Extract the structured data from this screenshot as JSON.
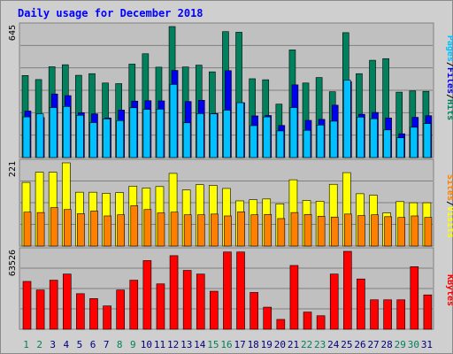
{
  "title": "Daily usage for December 2018",
  "colors": {
    "hits": "#00805c",
    "files": "#0000f0",
    "pages": "#00c0ff",
    "visits": "#ffff00",
    "sites": "#ff8000",
    "kbytes": "#ff0000",
    "day_normal": "#000080",
    "day_weekend": "#00805c"
  },
  "chart_data": [
    {
      "type": "bar",
      "name": "hits-files-pages",
      "max_label": "645",
      "categories": [
        "1",
        "2",
        "3",
        "4",
        "5",
        "6",
        "7",
        "8",
        "9",
        "10",
        "11",
        "12",
        "13",
        "14",
        "15",
        "16",
        "17",
        "18",
        "19",
        "20",
        "21",
        "22",
        "23",
        "24",
        "25",
        "26",
        "27",
        "28",
        "29",
        "30",
        "31"
      ],
      "weekend": [
        1,
        2,
        8,
        9,
        15,
        16,
        22,
        23,
        29,
        30
      ],
      "series": [
        {
          "name": "Hits",
          "values": [
            404,
            384,
            447,
            457,
            405,
            413,
            367,
            364,
            460,
            511,
            445,
            645,
            446,
            455,
            422,
            620,
            617,
            388,
            383,
            263,
            530,
            367,
            394,
            324,
            615,
            413,
            479,
            487,
            322,
            328,
            326
          ]
        },
        {
          "name": "Files",
          "values": [
            229,
            197,
            313,
            305,
            221,
            215,
            195,
            234,
            278,
            280,
            279,
            429,
            276,
            282,
            217,
            428,
            270,
            205,
            207,
            158,
            358,
            183,
            188,
            258,
            373,
            213,
            222,
            195,
            117,
            198,
            206
          ]
        },
        {
          "name": "Pages",
          "values": [
            200,
            215,
            246,
            251,
            208,
            172,
            190,
            182,
            245,
            237,
            238,
            360,
            171,
            216,
            215,
            233,
            270,
            157,
            200,
            131,
            246,
            134,
            160,
            179,
            381,
            199,
            191,
            136,
            97,
            149,
            167
          ]
        }
      ]
    },
    {
      "type": "bar",
      "name": "visits-sites",
      "max_label": "221",
      "categories": [
        "1",
        "2",
        "3",
        "4",
        "5",
        "6",
        "7",
        "8",
        "9",
        "10",
        "11",
        "12",
        "13",
        "14",
        "15",
        "16",
        "17",
        "18",
        "19",
        "20",
        "21",
        "22",
        "23",
        "24",
        "25",
        "26",
        "27",
        "28",
        "29",
        "30",
        "31"
      ],
      "series": [
        {
          "name": "Visits",
          "values": [
            169,
            196,
            196,
            221,
            143,
            143,
            140,
            142,
            159,
            154,
            158,
            193,
            149,
            163,
            161,
            153,
            120,
            123,
            125,
            112,
            176,
            121,
            119,
            164,
            195,
            139,
            135,
            88,
            118,
            115,
            115
          ]
        },
        {
          "name": "Sites",
          "values": [
            90,
            89,
            102,
            97,
            86,
            93,
            80,
            83,
            107,
            97,
            88,
            90,
            83,
            83,
            85,
            80,
            91,
            83,
            84,
            73,
            89,
            84,
            79,
            77,
            85,
            81,
            83,
            78,
            76,
            80,
            76
          ]
        }
      ]
    },
    {
      "type": "bar",
      "name": "kbytes",
      "max_label": "63526",
      "categories": [
        "1",
        "2",
        "3",
        "4",
        "5",
        "6",
        "7",
        "8",
        "9",
        "10",
        "11",
        "12",
        "13",
        "14",
        "15",
        "16",
        "17",
        "18",
        "19",
        "20",
        "21",
        "22",
        "23",
        "24",
        "25",
        "26",
        "27",
        "28",
        "29",
        "30",
        "31"
      ],
      "series": [
        {
          "name": "KBytes",
          "values": [
            39000,
            32000,
            40000,
            45000,
            29000,
            25000,
            19000,
            32000,
            40000,
            56000,
            37000,
            60000,
            48000,
            45000,
            31000,
            63000,
            63000,
            30000,
            18000,
            8000,
            52000,
            14000,
            11000,
            45000,
            63526,
            41000,
            24000,
            24000,
            24000,
            51000,
            28000
          ]
        }
      ]
    }
  ],
  "right_labels": {
    "top": [
      {
        "text": "Pages",
        "color": "#00c0ff"
      },
      {
        "text": "/",
        "color": "#000000"
      },
      {
        "text": "Files",
        "color": "#0000f0"
      },
      {
        "text": "/",
        "color": "#000000"
      },
      {
        "text": "Hits",
        "color": "#00805c"
      }
    ],
    "middle": [
      {
        "text": "Sites",
        "color": "#ff8000"
      },
      {
        "text": "/",
        "color": "#000000"
      },
      {
        "text": "Visits",
        "color": "#ffff00"
      }
    ],
    "bottom": [
      {
        "text": "KBytes",
        "color": "#ff0000"
      }
    ]
  }
}
